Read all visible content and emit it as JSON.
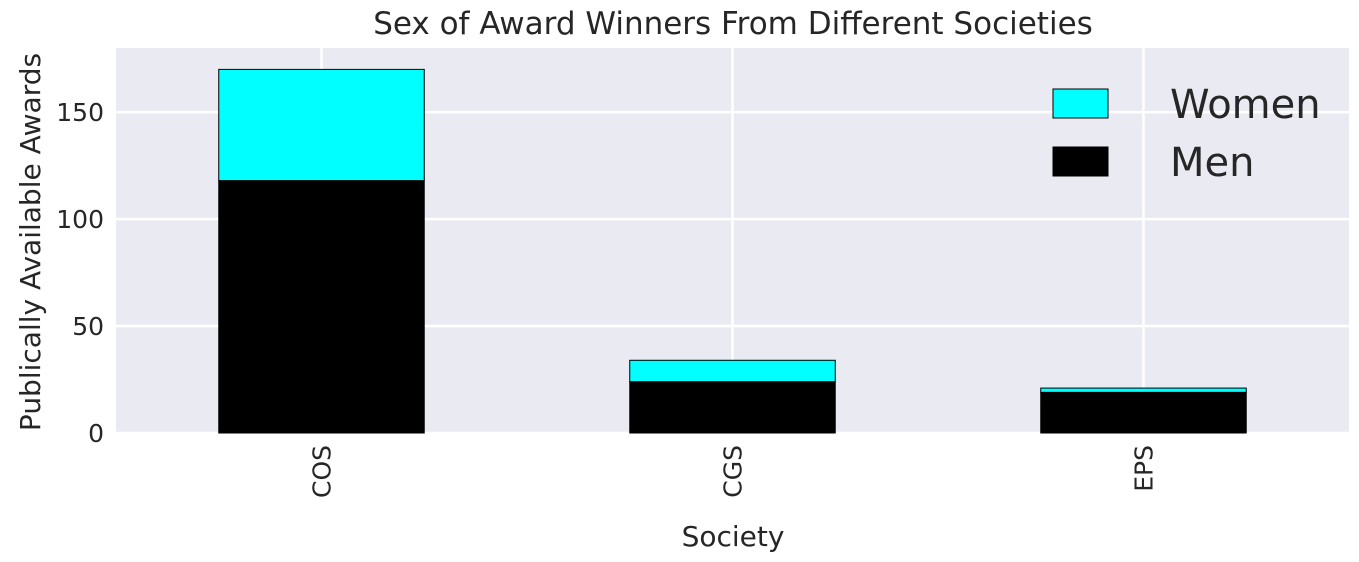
{
  "chart_data": {
    "type": "bar",
    "stacked": true,
    "title": "Sex of Award Winners From Different Societies",
    "xlabel": "Society",
    "ylabel": "Publically Available Awards",
    "categories": [
      "COS",
      "CGS",
      "EPS"
    ],
    "series": [
      {
        "name": "Men",
        "values": [
          118,
          24,
          19
        ],
        "color": "#000000"
      },
      {
        "name": "Women",
        "values": [
          52,
          10,
          2
        ],
        "color": "#00ffff"
      }
    ],
    "ylim": [
      0,
      180
    ],
    "yticks": [
      0,
      50,
      100,
      150
    ],
    "grid": true,
    "legend_position": "top-right",
    "legend_order": [
      "Women",
      "Men"
    ],
    "background_color": "#eaeaf2",
    "grid_color": "#ffffff"
  }
}
